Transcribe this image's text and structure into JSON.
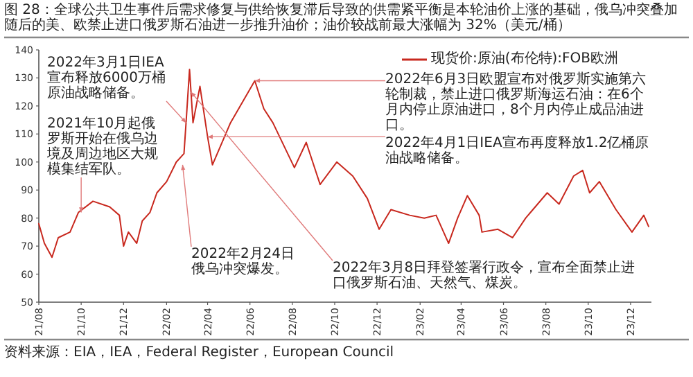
{
  "chart_data": {
    "type": "line",
    "title": "图 28：全球公共卫生事件后需求修复与供给恢复滞后导致的供需紧平衡是本轮油价上涨的基础，俄乌冲突叠加随后的美、欧禁止进口俄罗斯石油进一步推升油价；油价较战前最大涨幅为 32%（美元/桶）",
    "x": [
      "2021-08-01",
      "2021-08-09",
      "2021-08-20",
      "2021-08-29",
      "2021-09-15",
      "2021-09-27",
      "2021-10-18",
      "2021-11-11",
      "2021-11-25",
      "2021-12-01",
      "2021-12-08",
      "2021-12-20",
      "2021-12-28",
      "2022-01-08",
      "2022-01-18",
      "2022-02-01",
      "2022-02-15",
      "2022-02-26",
      "2022-03-01",
      "2022-03-06",
      "2022-03-11",
      "2022-03-21",
      "2022-04-01",
      "2022-04-08",
      "2022-05-04",
      "2022-06-08",
      "2022-06-21",
      "2022-07-04",
      "2022-08-04",
      "2022-08-21",
      "2022-09-10",
      "2022-10-04",
      "2022-10-27",
      "2022-11-17",
      "2022-12-04",
      "2022-12-21",
      "2023-01-17",
      "2023-02-07",
      "2023-02-24",
      "2023-03-14",
      "2023-03-27",
      "2023-04-10",
      "2023-04-27",
      "2023-05-01",
      "2023-05-24",
      "2023-06-14",
      "2023-07-03",
      "2023-08-03",
      "2023-08-20",
      "2023-09-10",
      "2023-09-23",
      "2023-10-03",
      "2023-10-17",
      "2023-11-10",
      "2023-12-03",
      "2023-12-20",
      "2023-12-27"
    ],
    "series": [
      {
        "name": "现货价:原油(布伦特):FOB欧洲",
        "color": "#c8281e",
        "values": [
          78,
          71,
          66,
          73,
          75,
          82,
          86,
          84,
          81,
          70,
          75,
          71,
          79,
          82,
          89,
          93,
          100,
          103,
          114,
          133,
          114,
          127,
          109,
          99,
          114,
          129,
          119,
          114,
          98,
          107,
          92,
          100,
          95,
          87,
          76,
          83,
          81,
          80,
          81,
          71,
          80,
          88,
          81,
          75,
          76,
          73,
          80,
          89,
          85,
          95,
          97,
          89,
          93,
          83,
          75,
          81,
          77
        ]
      }
    ],
    "xlim": [
      "2021-08-01",
      "2023-12-31"
    ],
    "ylim": [
      50,
      140
    ],
    "yticks": [
      50,
      60,
      70,
      80,
      90,
      100,
      110,
      120,
      130,
      140
    ],
    "xticks": [
      {
        "value": "2021-08-01",
        "label": "21/08"
      },
      {
        "value": "2021-10-01",
        "label": "21/10"
      },
      {
        "value": "2021-12-01",
        "label": "21/12"
      },
      {
        "value": "2022-02-01",
        "label": "22/02"
      },
      {
        "value": "2022-04-01",
        "label": "22/04"
      },
      {
        "value": "2022-06-01",
        "label": "22/06"
      },
      {
        "value": "2022-08-01",
        "label": "22/08"
      },
      {
        "value": "2022-10-01",
        "label": "22/10"
      },
      {
        "value": "2022-12-01",
        "label": "22/12"
      },
      {
        "value": "2023-02-01",
        "label": "23/02"
      },
      {
        "value": "2023-04-01",
        "label": "23/04"
      },
      {
        "value": "2023-06-01",
        "label": "23/06"
      },
      {
        "value": "2023-08-01",
        "label": "23/08"
      },
      {
        "value": "2023-10-01",
        "label": "23/10"
      },
      {
        "value": "2023-12-01",
        "label": "23/12"
      }
    ],
    "legend": "top right",
    "annotations": [
      {
        "text": "2022年3月1日IEA宣布释放6000万桶原油战略储备。",
        "x": "2022-03-01",
        "y": 114
      },
      {
        "text": "2021年10月起俄罗斯开始在俄乌边境及周边地区大规模集结军队。",
        "x": "2021-10-01",
        "y": 82
      },
      {
        "text": "2022年4月1日IEA宣布再度释放1.2亿桶原油战略储备。",
        "x": "2022-04-01",
        "y": 109
      },
      {
        "text": "2022年6月3日欧盟宣布对俄罗斯实施第六轮制裁，禁止进口俄罗斯海运石油：在6个月内停止原油进口，8个月内停止成品油进口。",
        "x": "2022-06-08",
        "y": 129
      },
      {
        "text": "2022年2月24日俄乌冲突爆发。",
        "x": "2022-02-24",
        "y": 99
      },
      {
        "text": "2022年3月8日拜登签署行政令，宣布全面禁止进口俄罗斯石油、天然气、煤炭。",
        "x": "2022-03-08",
        "y": 125
      },
      "资料来源：EIA，IEA，Federal Register，European Council"
    ]
  }
}
